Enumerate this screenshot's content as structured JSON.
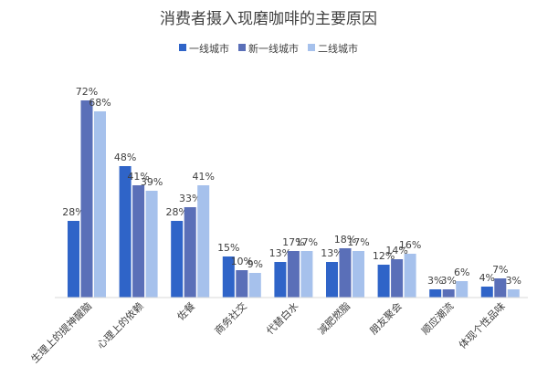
{
  "chart_data": {
    "type": "bar",
    "title": "消费者摄入现磨咖啡的主要原因",
    "legend_position": "top-center",
    "grid": false,
    "ylim": [
      0,
      80
    ],
    "categories": [
      "生理上的提神醒脑",
      "心理上的依赖",
      "佐餐",
      "商务社交",
      "代替白水",
      "减肥燃脂",
      "朋友聚会",
      "顺应潮流",
      "体现个性品味"
    ],
    "series": [
      {
        "name": "一线城市",
        "color": "#2f64c8",
        "values": [
          28,
          48,
          28,
          15,
          13,
          13,
          12,
          3,
          4
        ],
        "labels": [
          "28%",
          "48%",
          "28%",
          "15%",
          "13%",
          "13%",
          "12%",
          "3%",
          "4%"
        ]
      },
      {
        "name": "新一线城市",
        "color": "#5a6fb8",
        "values": [
          72,
          41,
          33,
          10,
          17,
          18,
          14,
          3,
          7
        ],
        "labels": [
          "72%",
          "41%",
          "33%",
          "10%",
          "17%",
          "18%",
          "14%",
          "3%",
          "7%"
        ]
      },
      {
        "name": "二线城市",
        "color": "#a6c1ec",
        "values": [
          68,
          39,
          41,
          9,
          17,
          17,
          16,
          6,
          3
        ],
        "labels": [
          "68%",
          "39%",
          "41%",
          "9%",
          "17%",
          "17%",
          "16%",
          "6%",
          "3%"
        ]
      }
    ]
  }
}
